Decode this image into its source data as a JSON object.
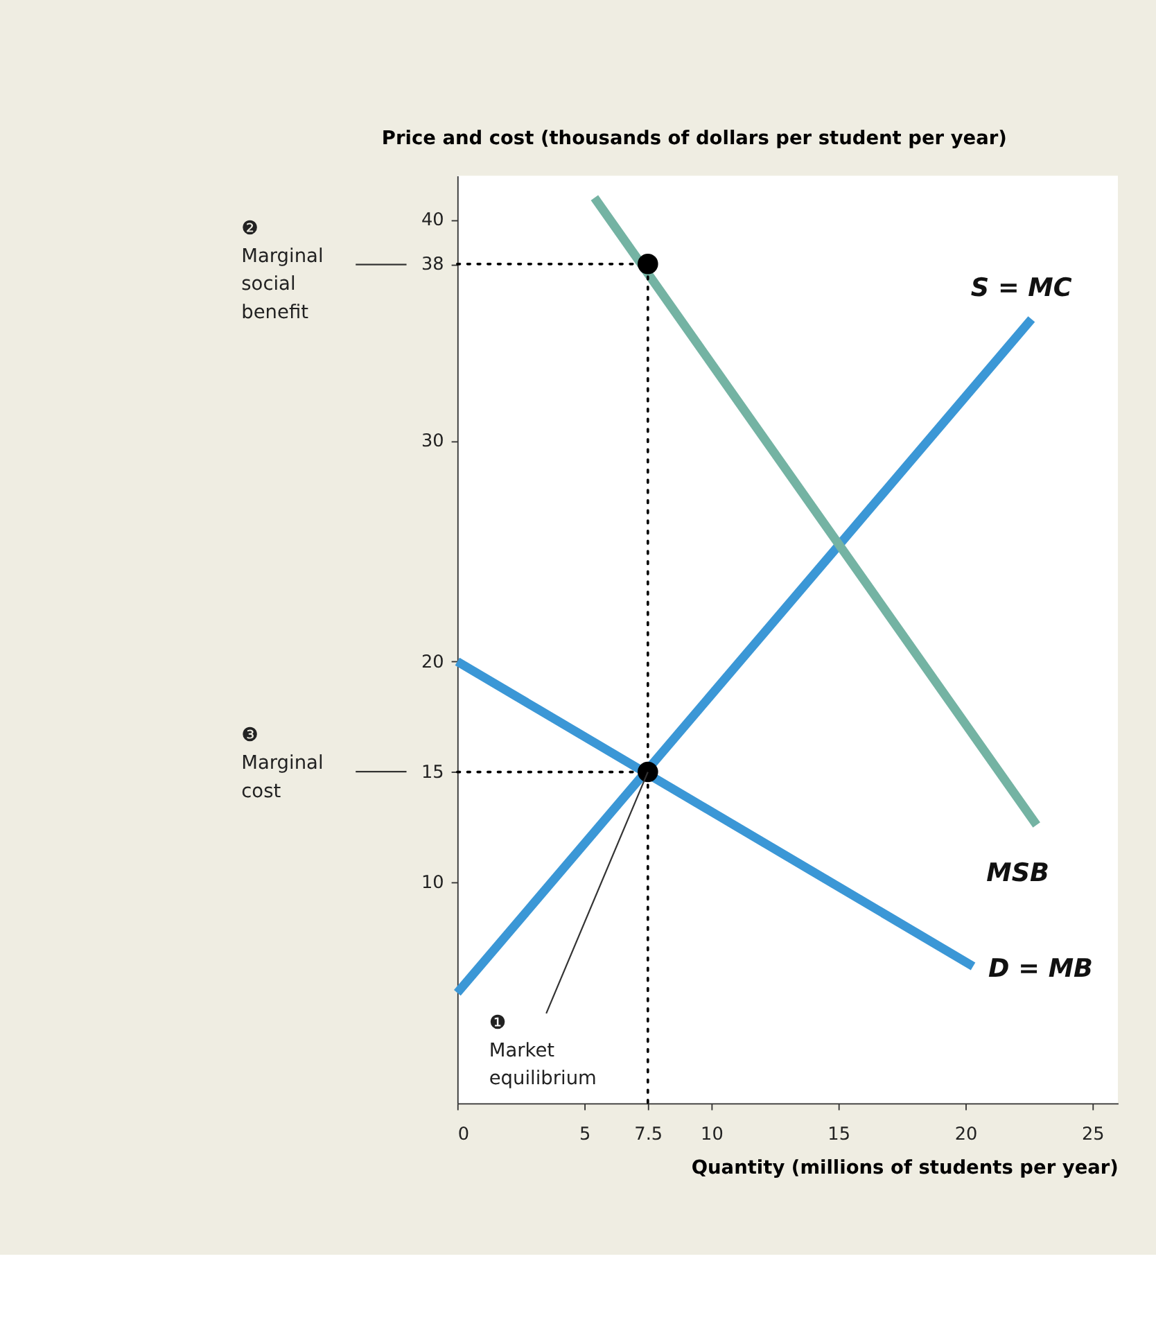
{
  "chart_data": {
    "type": "line",
    "xlabel": "Quantity (millions of students per year)",
    "ylabel": "Price and cost (thousands of dollars per student per year)",
    "xlim": [
      0,
      26
    ],
    "ylim": [
      0,
      42
    ],
    "xticks": [
      0,
      5,
      7.5,
      10,
      15,
      20,
      25
    ],
    "yticks": [
      10,
      15,
      20,
      30,
      38,
      40
    ],
    "grid": false,
    "series": [
      {
        "name": "S = MC",
        "color": "#3b97d6",
        "x": [
          0,
          22.6
        ],
        "values": [
          5,
          35.5
        ]
      },
      {
        "name": "D = MB",
        "color": "#3b97d6",
        "x": [
          0,
          20.3
        ],
        "values": [
          20,
          6.2
        ]
      },
      {
        "name": "MSB",
        "color": "#74b3a3",
        "x": [
          5.4,
          22.8
        ],
        "values": [
          41,
          12.6
        ]
      },
      {
        "color": "#000000",
        "line_style": "dotted",
        "x": [
          0,
          7.5,
          7.5
        ],
        "values": [
          38,
          38,
          0
        ]
      },
      {
        "color": "#000000",
        "line_style": "dotted",
        "x": [
          0,
          7.5
        ],
        "values": [
          15,
          15
        ]
      },
      {
        "type": "scatter",
        "marker": "circle",
        "color": "#000000",
        "x": [
          7.5,
          7.5
        ],
        "values": [
          38,
          15
        ]
      }
    ],
    "annotations": [
      {
        "text": "❶ Market equilibrium",
        "x": 7.5,
        "y": 15
      },
      "❷ Marginal social benefit",
      "❸ Marginal cost"
    ]
  }
}
